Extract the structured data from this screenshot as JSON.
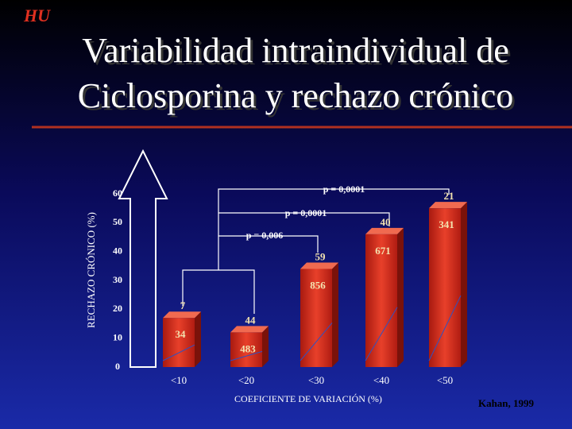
{
  "logo": "HU",
  "title_lines": [
    "Variabilidad intraindividual de",
    "Ciclosporina y rechazo crónico"
  ],
  "source": "Kahan, 1999",
  "chart_data": {
    "type": "bar",
    "x_label": "COEFICIENTE DE VARIACIÓN (%)",
    "y_label": "RECHAZO CRÓNICO (%)",
    "categories": [
      "<10",
      "<20",
      "<30",
      "<40",
      "<50"
    ],
    "values": [
      17,
      12,
      34,
      46,
      55
    ],
    "top_labels": [
      7,
      44,
      59,
      40,
      21
    ],
    "inner_labels": [
      34,
      483,
      856,
      671,
      341
    ],
    "color": "#d42a1a",
    "ylim": [
      0,
      60
    ],
    "yticks": [
      0,
      10,
      20,
      30,
      40,
      50,
      60
    ],
    "annotations": [
      "p = 0,0001",
      "p = 0,0001",
      "p = 0,006"
    ]
  }
}
